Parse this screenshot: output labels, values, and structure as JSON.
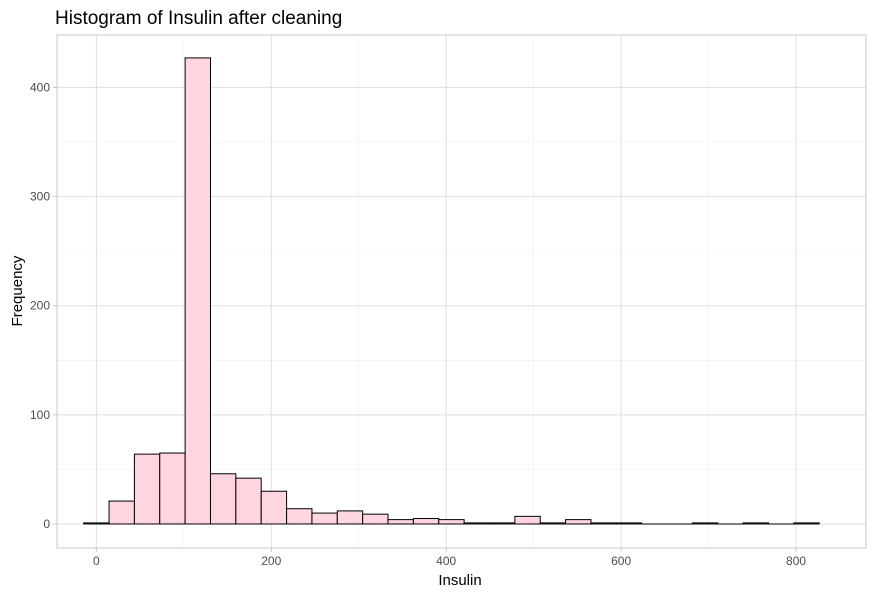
{
  "chart_data": {
    "type": "bar",
    "title": "Histogram of Insulin after cleaning",
    "xlabel": "Insulin",
    "ylabel": "Frequency",
    "xlim": [
      -45,
      880
    ],
    "ylim": [
      -22,
      448
    ],
    "x_ticks": [
      0,
      200,
      400,
      600,
      800
    ],
    "y_ticks": [
      0,
      100,
      200,
      300,
      400
    ],
    "bin_width": 29,
    "bins": [
      {
        "start": -14.5,
        "count": 1
      },
      {
        "start": 14.5,
        "count": 21
      },
      {
        "start": 43.5,
        "count": 64
      },
      {
        "start": 72.5,
        "count": 65
      },
      {
        "start": 101.5,
        "count": 427
      },
      {
        "start": 130.5,
        "count": 46
      },
      {
        "start": 159.5,
        "count": 42
      },
      {
        "start": 188.5,
        "count": 30
      },
      {
        "start": 217.5,
        "count": 14
      },
      {
        "start": 246.5,
        "count": 10
      },
      {
        "start": 275.5,
        "count": 12
      },
      {
        "start": 304.5,
        "count": 9
      },
      {
        "start": 333.5,
        "count": 4
      },
      {
        "start": 362.5,
        "count": 5
      },
      {
        "start": 391.5,
        "count": 4
      },
      {
        "start": 420.5,
        "count": 1
      },
      {
        "start": 449.5,
        "count": 1
      },
      {
        "start": 478.5,
        "count": 7
      },
      {
        "start": 507.5,
        "count": 1
      },
      {
        "start": 536.5,
        "count": 4
      },
      {
        "start": 565.5,
        "count": 1
      },
      {
        "start": 594.5,
        "count": 1
      },
      {
        "start": 623.5,
        "count": 0
      },
      {
        "start": 652.5,
        "count": 0
      },
      {
        "start": 681.5,
        "count": 1
      },
      {
        "start": 710.5,
        "count": 0
      },
      {
        "start": 739.5,
        "count": 1
      },
      {
        "start": 768.5,
        "count": 0
      },
      {
        "start": 797.5,
        "count": 1
      }
    ],
    "fill_color": "#ffd6df",
    "outline_color": "#000000",
    "grid": true,
    "legend": "none"
  }
}
